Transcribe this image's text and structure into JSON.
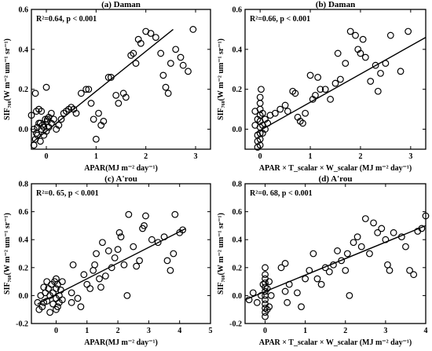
{
  "chart_data": [
    {
      "type": "scatter",
      "title": "(a) Daman",
      "stat": "R²=0.64, p < 0.001",
      "xlabel": "APAR(MJ m⁻² day⁻¹)",
      "ylabel": "SIF₇₆₀(W m⁻² um⁻¹ sr⁻¹)",
      "xlim": [
        -0.3,
        3.3
      ],
      "ylim": [
        -0.1,
        0.6
      ],
      "xticks": [
        0,
        1,
        2,
        3
      ],
      "yticks": [
        0.0,
        0.2,
        0.4,
        0.6
      ],
      "fit": {
        "x": [
          -0.3,
          2.55
        ],
        "y": [
          -0.07,
          0.5
        ]
      },
      "points": [
        [
          -0.25,
          -0.08
        ],
        [
          -0.22,
          -0.05
        ],
        [
          -0.2,
          -0.02
        ],
        [
          -0.18,
          0.01
        ],
        [
          -0.15,
          0.03
        ],
        [
          -0.12,
          -0.06
        ],
        [
          -0.1,
          0.0
        ],
        [
          -0.08,
          0.02
        ],
        [
          -0.05,
          -0.03
        ],
        [
          -0.02,
          0.05
        ],
        [
          0.0,
          -0.01
        ],
        [
          0.02,
          0.04
        ],
        [
          0.05,
          0.01
        ],
        [
          -0.2,
          0.09
        ],
        [
          -0.15,
          0.1
        ],
        [
          -0.1,
          0.09
        ],
        [
          -0.22,
          0.18
        ],
        [
          0.02,
          0.05
        ],
        [
          0.05,
          0.06
        ],
        [
          0.1,
          0.08
        ],
        [
          0.0,
          0.21
        ],
        [
          0.15,
          0.05
        ],
        [
          0.2,
          0.0
        ],
        [
          0.25,
          0.02
        ],
        [
          0.3,
          0.05
        ],
        [
          0.35,
          0.08
        ],
        [
          0.4,
          0.09
        ],
        [
          0.45,
          0.1
        ],
        [
          0.5,
          0.11
        ],
        [
          0.55,
          0.1
        ],
        [
          0.6,
          0.08
        ],
        [
          0.7,
          0.18
        ],
        [
          0.8,
          0.2
        ],
        [
          0.85,
          0.2
        ],
        [
          0.9,
          0.13
        ],
        [
          0.95,
          0.05
        ],
        [
          1.0,
          -0.05
        ],
        [
          1.05,
          0.08
        ],
        [
          1.1,
          0.02
        ],
        [
          1.15,
          0.04
        ],
        [
          1.25,
          0.26
        ],
        [
          1.3,
          0.26
        ],
        [
          1.4,
          0.17
        ],
        [
          1.45,
          0.13
        ],
        [
          1.55,
          0.18
        ],
        [
          1.6,
          0.16
        ],
        [
          1.7,
          0.37
        ],
        [
          1.75,
          0.38
        ],
        [
          1.8,
          0.33
        ],
        [
          1.85,
          0.45
        ],
        [
          1.9,
          0.43
        ],
        [
          2.0,
          0.49
        ],
        [
          2.1,
          0.48
        ],
        [
          2.2,
          0.46
        ],
        [
          2.3,
          0.38
        ],
        [
          2.35,
          0.27
        ],
        [
          2.4,
          0.21
        ],
        [
          2.45,
          0.18
        ],
        [
          2.5,
          0.33
        ],
        [
          2.6,
          0.4
        ],
        [
          2.7,
          0.36
        ],
        [
          2.75,
          0.32
        ],
        [
          2.85,
          0.29
        ],
        [
          2.95,
          0.5
        ],
        [
          -0.05,
          0.01
        ],
        [
          -0.12,
          0.03
        ],
        [
          -0.18,
          -0.03
        ],
        [
          -0.25,
          0.0
        ],
        [
          0.1,
          0.03
        ],
        [
          -0.3,
          0.07
        ]
      ]
    },
    {
      "type": "scatter",
      "title": "(b) Daman",
      "stat": "R²=0.66, p < 0.001",
      "xlabel": "APAR × T_scalar × W_scalar (MJ m⁻² day⁻¹)",
      "ylabel": "SIF₇₆₀(W m⁻² um⁻¹ sr⁻¹)",
      "xlim": [
        -0.3,
        3.3
      ],
      "ylim": [
        -0.1,
        0.6
      ],
      "xticks": [
        0,
        1,
        2,
        3
      ],
      "yticks": [
        0.0,
        0.2,
        0.4,
        0.6
      ],
      "fit": {
        "x": [
          -0.1,
          3.3
        ],
        "y": [
          -0.02,
          0.46
        ]
      },
      "points": [
        [
          -0.05,
          -0.09
        ],
        [
          -0.05,
          -0.06
        ],
        [
          -0.05,
          -0.03
        ],
        [
          0.0,
          -0.08
        ],
        [
          0.0,
          -0.05
        ],
        [
          0.0,
          -0.02
        ],
        [
          0.0,
          0.01
        ],
        [
          0.0,
          0.04
        ],
        [
          0.0,
          0.07
        ],
        [
          0.0,
          0.1
        ],
        [
          0.0,
          0.13
        ],
        [
          0.02,
          0.2
        ],
        [
          0.05,
          -0.02
        ],
        [
          0.05,
          0.02
        ],
        [
          -0.1,
          0.09
        ],
        [
          -0.1,
          0.02
        ],
        [
          0.1,
          0.0
        ],
        [
          0.1,
          0.05
        ],
        [
          0.15,
          0.03
        ],
        [
          0.2,
          0.07
        ],
        [
          0.3,
          0.08
        ],
        [
          0.4,
          0.1
        ],
        [
          0.5,
          0.12
        ],
        [
          0.55,
          0.09
        ],
        [
          0.65,
          0.19
        ],
        [
          0.7,
          0.18
        ],
        [
          0.75,
          0.06
        ],
        [
          0.8,
          0.04
        ],
        [
          0.85,
          0.03
        ],
        [
          0.9,
          0.08
        ],
        [
          1.0,
          0.27
        ],
        [
          1.05,
          0.15
        ],
        [
          1.1,
          0.17
        ],
        [
          1.15,
          0.26
        ],
        [
          1.2,
          0.2
        ],
        [
          1.3,
          0.2
        ],
        [
          1.4,
          0.15
        ],
        [
          1.5,
          0.23
        ],
        [
          1.55,
          0.38
        ],
        [
          1.6,
          0.25
        ],
        [
          1.7,
          0.33
        ],
        [
          1.8,
          0.49
        ],
        [
          1.9,
          0.47
        ],
        [
          1.95,
          0.4
        ],
        [
          2.0,
          0.38
        ],
        [
          2.05,
          0.45
        ],
        [
          2.1,
          0.36
        ],
        [
          2.2,
          0.24
        ],
        [
          2.3,
          0.32
        ],
        [
          2.35,
          0.19
        ],
        [
          2.4,
          0.28
        ],
        [
          2.5,
          0.33
        ],
        [
          2.6,
          0.47
        ],
        [
          2.8,
          0.29
        ],
        [
          2.95,
          0.49
        ],
        [
          0.0,
          0.16
        ],
        [
          -0.05,
          0.05
        ],
        [
          0.05,
          0.08
        ]
      ]
    },
    {
      "type": "scatter",
      "title": "(c) A'rou",
      "stat": "R²=0. 65, p < 0.001",
      "xlabel": "APAR(MJ m⁻² day⁻¹)",
      "ylabel": "SIF₇₆₀(W m⁻² um⁻¹ sr⁻¹)",
      "xlim": [
        -0.8,
        5.0
      ],
      "ylim": [
        -0.2,
        0.8
      ],
      "xticks": [
        0,
        1,
        2,
        3,
        4,
        5
      ],
      "yticks": [
        -0.2,
        0.0,
        0.2,
        0.4,
        0.6,
        0.8
      ],
      "fit": {
        "x": [
          -0.6,
          4.2
        ],
        "y": [
          -0.06,
          0.48
        ]
      },
      "points": [
        [
          -0.6,
          -0.05
        ],
        [
          -0.55,
          -0.1
        ],
        [
          -0.5,
          0.0
        ],
        [
          -0.45,
          -0.08
        ],
        [
          -0.4,
          -0.05
        ],
        [
          -0.35,
          0.02
        ],
        [
          -0.3,
          -0.04
        ],
        [
          -0.25,
          0.05
        ],
        [
          -0.2,
          -0.12
        ],
        [
          -0.2,
          0.0
        ],
        [
          -0.15,
          0.08
        ],
        [
          -0.1,
          -0.06
        ],
        [
          -0.1,
          0.02
        ],
        [
          -0.05,
          0.1
        ],
        [
          0.0,
          -0.02
        ],
        [
          0.0,
          0.05
        ],
        [
          0.0,
          0.12
        ],
        [
          0.05,
          -0.08
        ],
        [
          0.05,
          0.08
        ],
        [
          0.1,
          0.0
        ],
        [
          0.1,
          -0.05
        ],
        [
          0.15,
          0.04
        ],
        [
          0.2,
          -0.03
        ],
        [
          0.2,
          0.1
        ],
        [
          -0.3,
          0.1
        ],
        [
          -0.4,
          0.06
        ],
        [
          0.0,
          -0.1
        ],
        [
          0.5,
          -0.05
        ],
        [
          0.5,
          0.02
        ],
        [
          0.55,
          0.22
        ],
        [
          0.7,
          -0.02
        ],
        [
          0.8,
          -0.08
        ],
        [
          0.9,
          0.15
        ],
        [
          1.0,
          0.08
        ],
        [
          1.1,
          0.05
        ],
        [
          1.2,
          0.18
        ],
        [
          1.25,
          0.22
        ],
        [
          1.3,
          0.3
        ],
        [
          1.4,
          0.12
        ],
        [
          1.45,
          0.06
        ],
        [
          1.5,
          0.38
        ],
        [
          1.6,
          0.14
        ],
        [
          1.7,
          0.32
        ],
        [
          1.8,
          0.2
        ],
        [
          1.9,
          0.27
        ],
        [
          2.0,
          0.33
        ],
        [
          2.05,
          0.45
        ],
        [
          2.1,
          0.42
        ],
        [
          2.2,
          0.22
        ],
        [
          2.3,
          0.0
        ],
        [
          2.35,
          0.58
        ],
        [
          2.5,
          0.35
        ],
        [
          2.6,
          0.21
        ],
        [
          2.7,
          0.25
        ],
        [
          2.8,
          0.48
        ],
        [
          2.85,
          0.5
        ],
        [
          2.9,
          0.57
        ],
        [
          3.1,
          0.4
        ],
        [
          3.3,
          0.38
        ],
        [
          3.5,
          0.42
        ],
        [
          3.6,
          0.25
        ],
        [
          3.7,
          0.18
        ],
        [
          3.8,
          0.3
        ],
        [
          3.85,
          0.58
        ],
        [
          4.0,
          0.45
        ],
        [
          4.1,
          0.47
        ]
      ]
    },
    {
      "type": "scatter",
      "title": "(d) A'rou",
      "stat": "R²=0. 68, p < 0.001",
      "xlabel": "APAR × T_scalar × W_scalar (MJ m⁻² day⁻¹)",
      "ylabel": "SIF₇₆₀(W m⁻² um⁻¹ sr⁻¹)",
      "xlim": [
        -0.5,
        4.0
      ],
      "ylim": [
        -0.2,
        0.8
      ],
      "xticks": [
        0,
        1,
        2,
        3,
        4
      ],
      "yticks": [
        -0.2,
        0.0,
        0.2,
        0.4,
        0.6,
        0.8
      ],
      "fit": {
        "x": [
          -0.5,
          4.0
        ],
        "y": [
          -0.03,
          0.5
        ]
      },
      "points": [
        [
          -0.4,
          -0.03
        ],
        [
          -0.3,
          0.02
        ],
        [
          -0.2,
          -0.05
        ],
        [
          -0.1,
          0.0
        ],
        [
          0.0,
          -0.15
        ],
        [
          0.0,
          -0.12
        ],
        [
          0.0,
          -0.09
        ],
        [
          0.0,
          -0.06
        ],
        [
          0.0,
          -0.03
        ],
        [
          0.0,
          0.0
        ],
        [
          0.0,
          0.03
        ],
        [
          0.0,
          0.06
        ],
        [
          0.0,
          0.09
        ],
        [
          0.0,
          0.12
        ],
        [
          0.0,
          0.15
        ],
        [
          0.05,
          -0.1
        ],
        [
          0.05,
          0.05
        ],
        [
          0.1,
          -0.08
        ],
        [
          0.1,
          0.1
        ],
        [
          0.15,
          0.0
        ],
        [
          0.4,
          0.2
        ],
        [
          0.5,
          0.23
        ],
        [
          0.5,
          0.03
        ],
        [
          0.55,
          -0.05
        ],
        [
          0.6,
          0.08
        ],
        [
          0.8,
          0.02
        ],
        [
          0.9,
          -0.08
        ],
        [
          1.0,
          0.12
        ],
        [
          1.1,
          0.18
        ],
        [
          1.2,
          0.3
        ],
        [
          1.3,
          0.12
        ],
        [
          1.4,
          0.08
        ],
        [
          1.5,
          0.2
        ],
        [
          1.6,
          0.17
        ],
        [
          1.7,
          0.22
        ],
        [
          1.8,
          0.32
        ],
        [
          1.9,
          0.25
        ],
        [
          2.0,
          0.18
        ],
        [
          2.05,
          0.3
        ],
        [
          2.1,
          0.0
        ],
        [
          2.2,
          0.38
        ],
        [
          2.3,
          0.42
        ],
        [
          2.4,
          0.35
        ],
        [
          2.5,
          0.55
        ],
        [
          2.6,
          0.3
        ],
        [
          2.7,
          0.52
        ],
        [
          2.8,
          0.45
        ],
        [
          2.9,
          0.48
        ],
        [
          3.0,
          0.4
        ],
        [
          3.05,
          0.22
        ],
        [
          3.1,
          0.18
        ],
        [
          3.2,
          0.45
        ],
        [
          3.4,
          0.42
        ],
        [
          3.5,
          0.35
        ],
        [
          3.6,
          0.18
        ],
        [
          3.7,
          0.15
        ],
        [
          3.8,
          0.46
        ],
        [
          3.9,
          0.48
        ],
        [
          4.0,
          0.57
        ],
        [
          0.0,
          0.2
        ],
        [
          -0.05,
          0.08
        ]
      ]
    }
  ]
}
